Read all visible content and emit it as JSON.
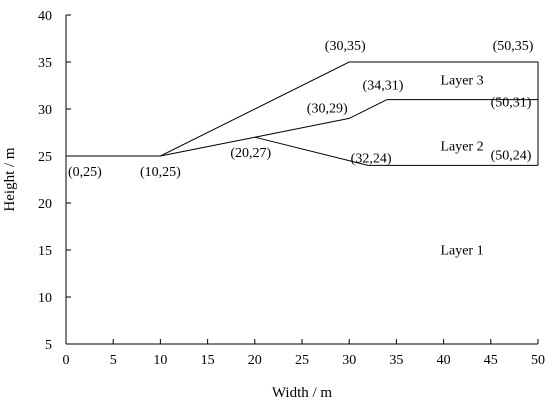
{
  "chart_data": {
    "type": "line",
    "xlabel": "Width / m",
    "ylabel": "Height / m",
    "xlim": [
      0,
      50
    ],
    "ylim": [
      5,
      40
    ],
    "xticks": [
      "0",
      "5",
      "10",
      "15",
      "20",
      "25",
      "30",
      "35",
      "40",
      "45",
      "50"
    ],
    "yticks": [
      "5",
      "10",
      "15",
      "20",
      "25",
      "30",
      "35",
      "40"
    ],
    "boundaries": [
      {
        "id": "ground-surface",
        "points": [
          [
            0,
            25
          ],
          [
            10,
            25
          ],
          [
            30,
            35
          ],
          [
            50,
            35
          ]
        ]
      },
      {
        "id": "layer3-base",
        "points": [
          [
            10,
            25
          ],
          [
            20,
            27
          ],
          [
            30,
            29
          ],
          [
            34,
            31
          ],
          [
            50,
            31
          ]
        ]
      },
      {
        "id": "layer2-base",
        "points": [
          [
            20,
            27
          ],
          [
            32,
            24
          ],
          [
            50,
            24
          ]
        ]
      },
      {
        "id": "right-edge",
        "points": [
          [
            50,
            24
          ],
          [
            50,
            35
          ]
        ]
      }
    ],
    "point_labels": [
      {
        "text": "(0,25)",
        "x": 0,
        "y": 25
      },
      {
        "text": "(10,25)",
        "x": 10,
        "y": 25
      },
      {
        "text": "(20,27)",
        "x": 20,
        "y": 27
      },
      {
        "text": "(30,29)",
        "x": 30,
        "y": 29
      },
      {
        "text": "(30,35)",
        "x": 30,
        "y": 35
      },
      {
        "text": "(34,31)",
        "x": 34,
        "y": 31
      },
      {
        "text": "(32,24)",
        "x": 32,
        "y": 24
      },
      {
        "text": "(50,35)",
        "x": 50,
        "y": 35
      },
      {
        "text": "(50,31)",
        "x": 50,
        "y": 31
      },
      {
        "text": "(50,24)",
        "x": 50,
        "y": 24
      }
    ],
    "layer_labels": [
      {
        "text": "Layer 3",
        "x": 41,
        "y": 32.6
      },
      {
        "text": "Layer 2",
        "x": 41,
        "y": 25.6
      },
      {
        "text": "Layer 1",
        "x": 41,
        "y": 14.5
      }
    ]
  }
}
